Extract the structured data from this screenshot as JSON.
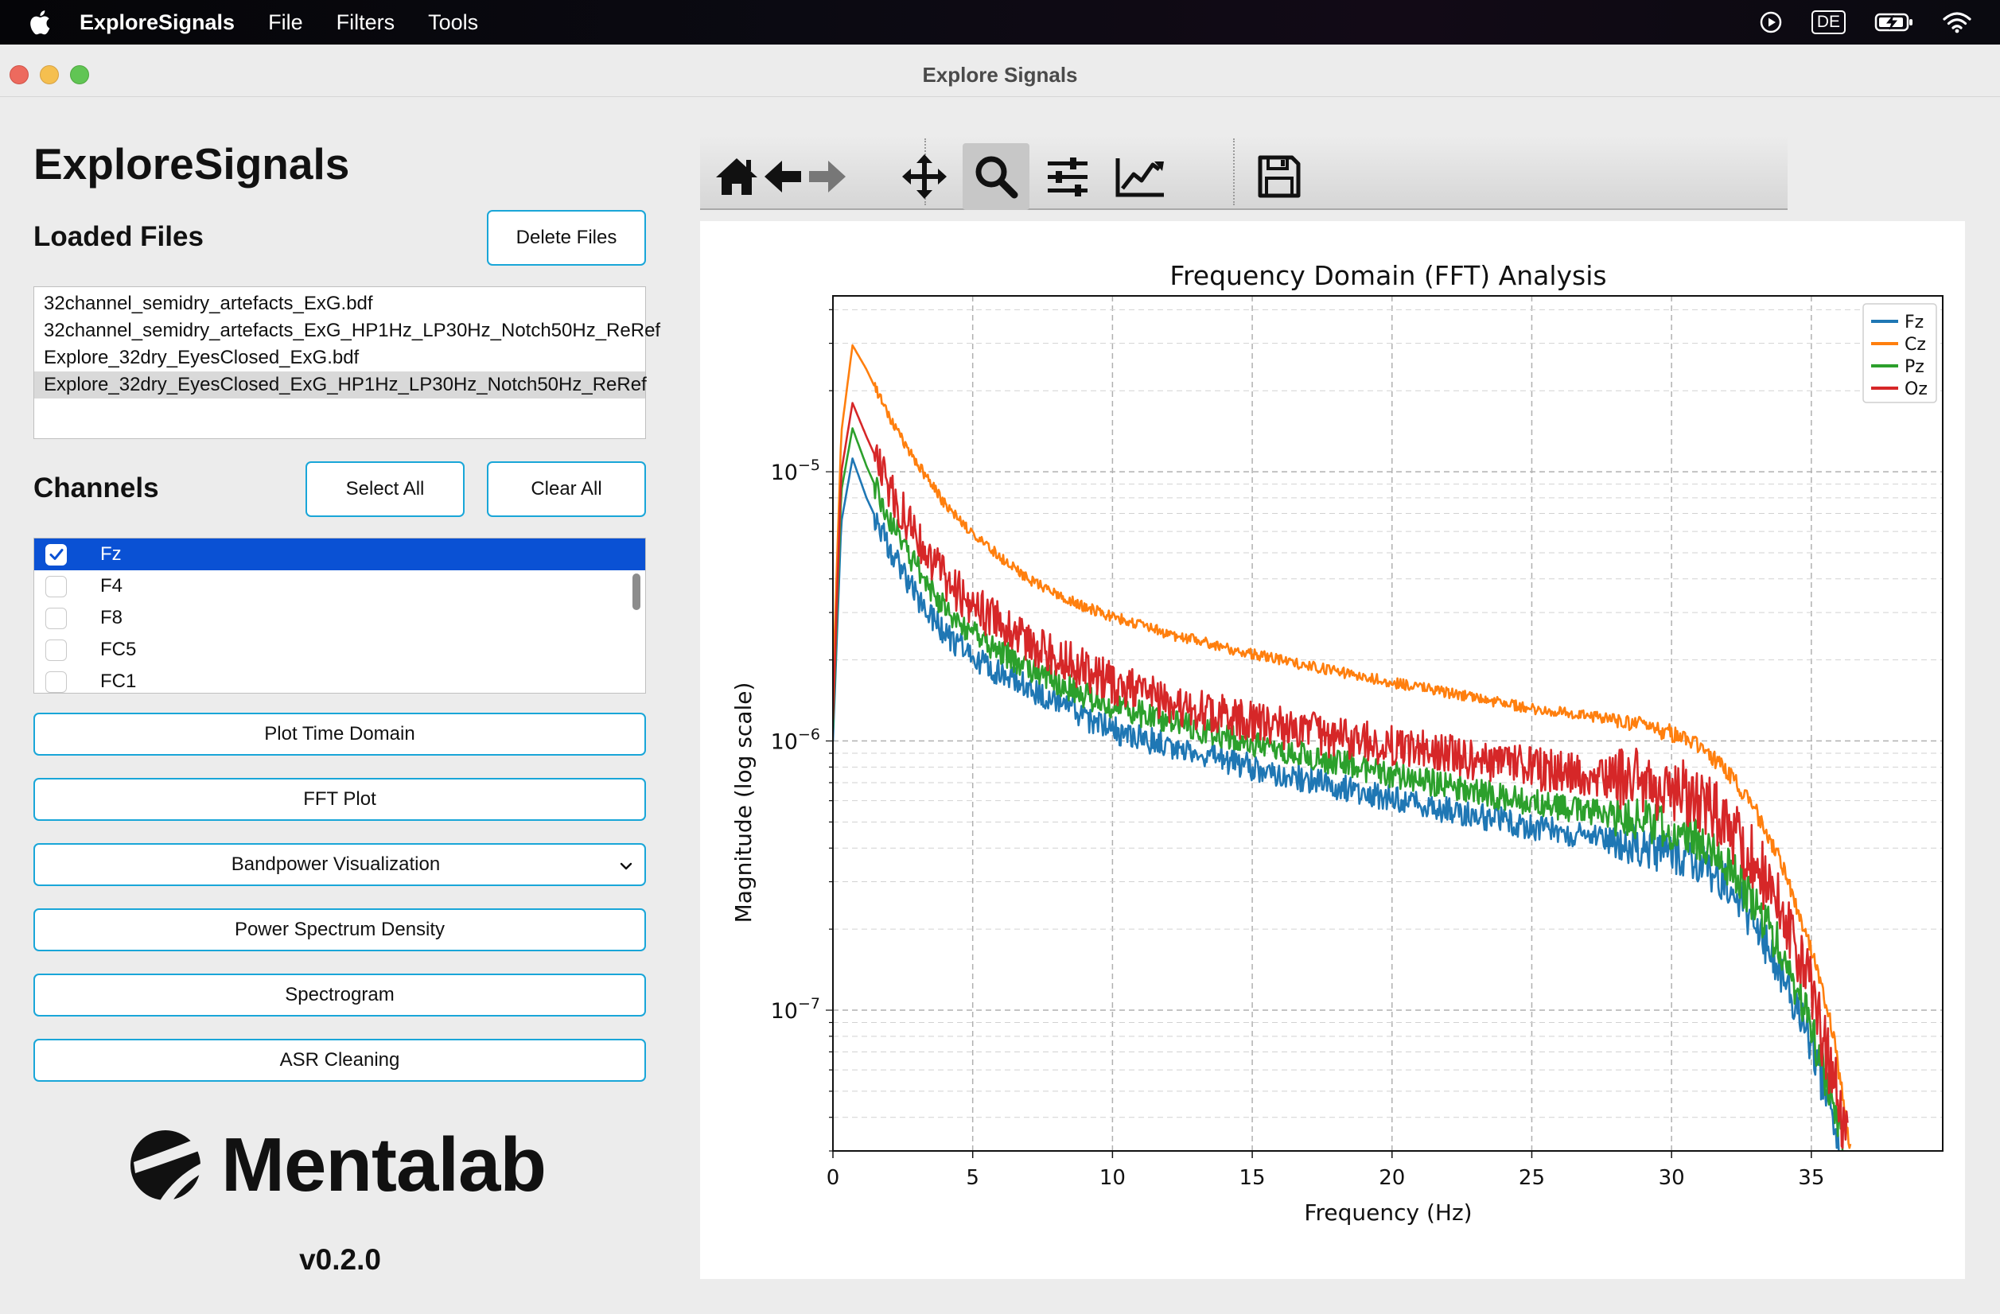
{
  "menubar": {
    "app_name": "ExploreSignals",
    "items": [
      "File",
      "Filters",
      "Tools"
    ],
    "input_source": "DE"
  },
  "window": {
    "title": "Explore Signals"
  },
  "sidebar": {
    "title": "ExploreSignals",
    "loaded_files_heading": "Loaded Files",
    "delete_files_label": "Delete Files",
    "files": [
      "32channel_semidry_artefacts_ExG.bdf",
      "32channel_semidry_artefacts_ExG_HP1Hz_LP30Hz_Notch50Hz_ReRef",
      "Explore_32dry_EyesClosed_ExG.bdf",
      "Explore_32dry_EyesClosed_ExG_HP1Hz_LP30Hz_Notch50Hz_ReRef"
    ],
    "selected_file_index": 3,
    "channels_heading": "Channels",
    "select_all_label": "Select All",
    "clear_all_label": "Clear All",
    "channels": [
      {
        "name": "Fz",
        "checked": true
      },
      {
        "name": "F4",
        "checked": false
      },
      {
        "name": "F8",
        "checked": false
      },
      {
        "name": "FC5",
        "checked": false
      },
      {
        "name": "FC1",
        "checked": false
      }
    ],
    "actions": {
      "plot_time_domain": "Plot Time Domain",
      "fft_plot": "FFT Plot",
      "bandpower": "Bandpower Visualization",
      "psd": "Power Spectrum Density",
      "spectrogram": "Spectrogram",
      "asr": "ASR Cleaning"
    },
    "logo_text": "Mentalab",
    "version": "v0.2.0"
  },
  "toolbar": {
    "tools": [
      "home-icon",
      "back-arrow-icon",
      "forward-arrow-icon",
      "pan-icon",
      "zoom-icon",
      "configure-subplots-icon",
      "edit-axis-icon",
      "save-icon"
    ],
    "active_tool": "zoom-icon"
  },
  "chart_data": {
    "type": "line",
    "title": "Frequency Domain (FFT) Analysis",
    "xlabel": "Frequency (Hz)",
    "ylabel": "Magnitude (log scale)",
    "xlim": [
      0,
      39.7
    ],
    "ylim": [
      3e-08,
      4.5e-05
    ],
    "yscale": "log",
    "grid": true,
    "legend_position": "top-right",
    "xticks": [
      0,
      5,
      10,
      15,
      20,
      25,
      30,
      35
    ],
    "yticks": [
      {
        "value": 1e-05,
        "base": "10",
        "exp": "−5"
      },
      {
        "value": 1e-06,
        "base": "10",
        "exp": "−6"
      },
      {
        "value": 1e-07,
        "base": "10",
        "exp": "−7"
      }
    ],
    "series": [
      {
        "name": "Fz",
        "color": "#1f77b4",
        "points": [
          [
            0,
            1e-06
          ],
          [
            0.3,
            6.5e-06
          ],
          [
            0.7,
            1.12e-05
          ],
          [
            1.2,
            8e-06
          ],
          [
            2,
            5.3e-06
          ],
          [
            3,
            3.4e-06
          ],
          [
            4,
            2.5e-06
          ],
          [
            5,
            2.05e-06
          ],
          [
            6,
            1.78e-06
          ],
          [
            7,
            1.58e-06
          ],
          [
            8,
            1.38e-06
          ],
          [
            9,
            1.22e-06
          ],
          [
            10,
            1.1e-06
          ],
          [
            12,
            9.6e-07
          ],
          [
            15,
            8e-07
          ],
          [
            20,
            6.1e-07
          ],
          [
            25,
            4.8e-07
          ],
          [
            28,
            4.25e-07
          ],
          [
            30,
            3.8e-07
          ],
          [
            31,
            3.5e-07
          ],
          [
            32,
            2.9e-07
          ],
          [
            33,
            2.1e-07
          ],
          [
            34,
            1.35e-07
          ],
          [
            35,
            7.5e-08
          ],
          [
            35.6,
            4.5e-08
          ],
          [
            36,
            3e-08
          ]
        ]
      },
      {
        "name": "Cz",
        "color": "#ff7f0e",
        "points": [
          [
            0,
            1.6e-06
          ],
          [
            0.3,
            1.4e-05
          ],
          [
            0.7,
            2.95e-05
          ],
          [
            1.2,
            2.4e-05
          ],
          [
            2,
            1.6e-05
          ],
          [
            3,
            1.08e-05
          ],
          [
            4,
            7.6e-06
          ],
          [
            5,
            5.9e-06
          ],
          [
            6,
            4.8e-06
          ],
          [
            7,
            4e-06
          ],
          [
            8,
            3.5e-06
          ],
          [
            9,
            3.15e-06
          ],
          [
            10,
            2.9e-06
          ],
          [
            12,
            2.5e-06
          ],
          [
            15,
            2.1e-06
          ],
          [
            20,
            1.65e-06
          ],
          [
            25,
            1.32e-06
          ],
          [
            28,
            1.2e-06
          ],
          [
            30,
            1.07e-06
          ],
          [
            31,
            9.5e-07
          ],
          [
            32,
            7.7e-07
          ],
          [
            33,
            5.5e-07
          ],
          [
            34,
            3.4e-07
          ],
          [
            35,
            1.7e-07
          ],
          [
            35.8,
            8e-08
          ],
          [
            36.4,
            3e-08
          ]
        ]
      },
      {
        "name": "Pz",
        "color": "#2ca02c",
        "points": [
          [
            0,
            1.1e-06
          ],
          [
            0.3,
            8.5e-06
          ],
          [
            0.7,
            1.45e-05
          ],
          [
            1.2,
            1.05e-05
          ],
          [
            2,
            6.8e-06
          ],
          [
            3,
            4.4e-06
          ],
          [
            4,
            3.1e-06
          ],
          [
            5,
            2.5e-06
          ],
          [
            6,
            2.15e-06
          ],
          [
            7,
            1.88e-06
          ],
          [
            8,
            1.66e-06
          ],
          [
            9,
            1.48e-06
          ],
          [
            10,
            1.35e-06
          ],
          [
            12,
            1.18e-06
          ],
          [
            15,
            9.8e-07
          ],
          [
            20,
            7.5e-07
          ],
          [
            25,
            5.9e-07
          ],
          [
            28,
            5.3e-07
          ],
          [
            30,
            4.75e-07
          ],
          [
            31,
            4.3e-07
          ],
          [
            32,
            3.5e-07
          ],
          [
            33,
            2.5e-07
          ],
          [
            34,
            1.6e-07
          ],
          [
            35,
            8.5e-08
          ],
          [
            35.8,
            4.5e-08
          ],
          [
            36.2,
            3e-08
          ]
        ]
      },
      {
        "name": "Oz",
        "color": "#d62728",
        "points": [
          [
            0,
            1.2e-06
          ],
          [
            0.3,
            1e-05
          ],
          [
            0.7,
            1.8e-05
          ],
          [
            1.2,
            1.35e-05
          ],
          [
            2,
            8.8e-06
          ],
          [
            3,
            5.7e-06
          ],
          [
            4,
            4e-06
          ],
          [
            5,
            3.2e-06
          ],
          [
            6,
            2.7e-06
          ],
          [
            7,
            2.35e-06
          ],
          [
            8,
            2.05e-06
          ],
          [
            9,
            1.85e-06
          ],
          [
            10,
            1.65e-06
          ],
          [
            12,
            1.4e-06
          ],
          [
            15,
            1.17e-06
          ],
          [
            20,
            9.5e-07
          ],
          [
            25,
            7.9e-07
          ],
          [
            28,
            7.2e-07
          ],
          [
            30,
            6.6e-07
          ],
          [
            31,
            6e-07
          ],
          [
            32,
            5e-07
          ],
          [
            33,
            3.6e-07
          ],
          [
            34,
            2.2e-07
          ],
          [
            35,
            1.15e-07
          ],
          [
            35.8,
            5.5e-08
          ],
          [
            36.3,
            3e-08
          ]
        ]
      }
    ]
  }
}
